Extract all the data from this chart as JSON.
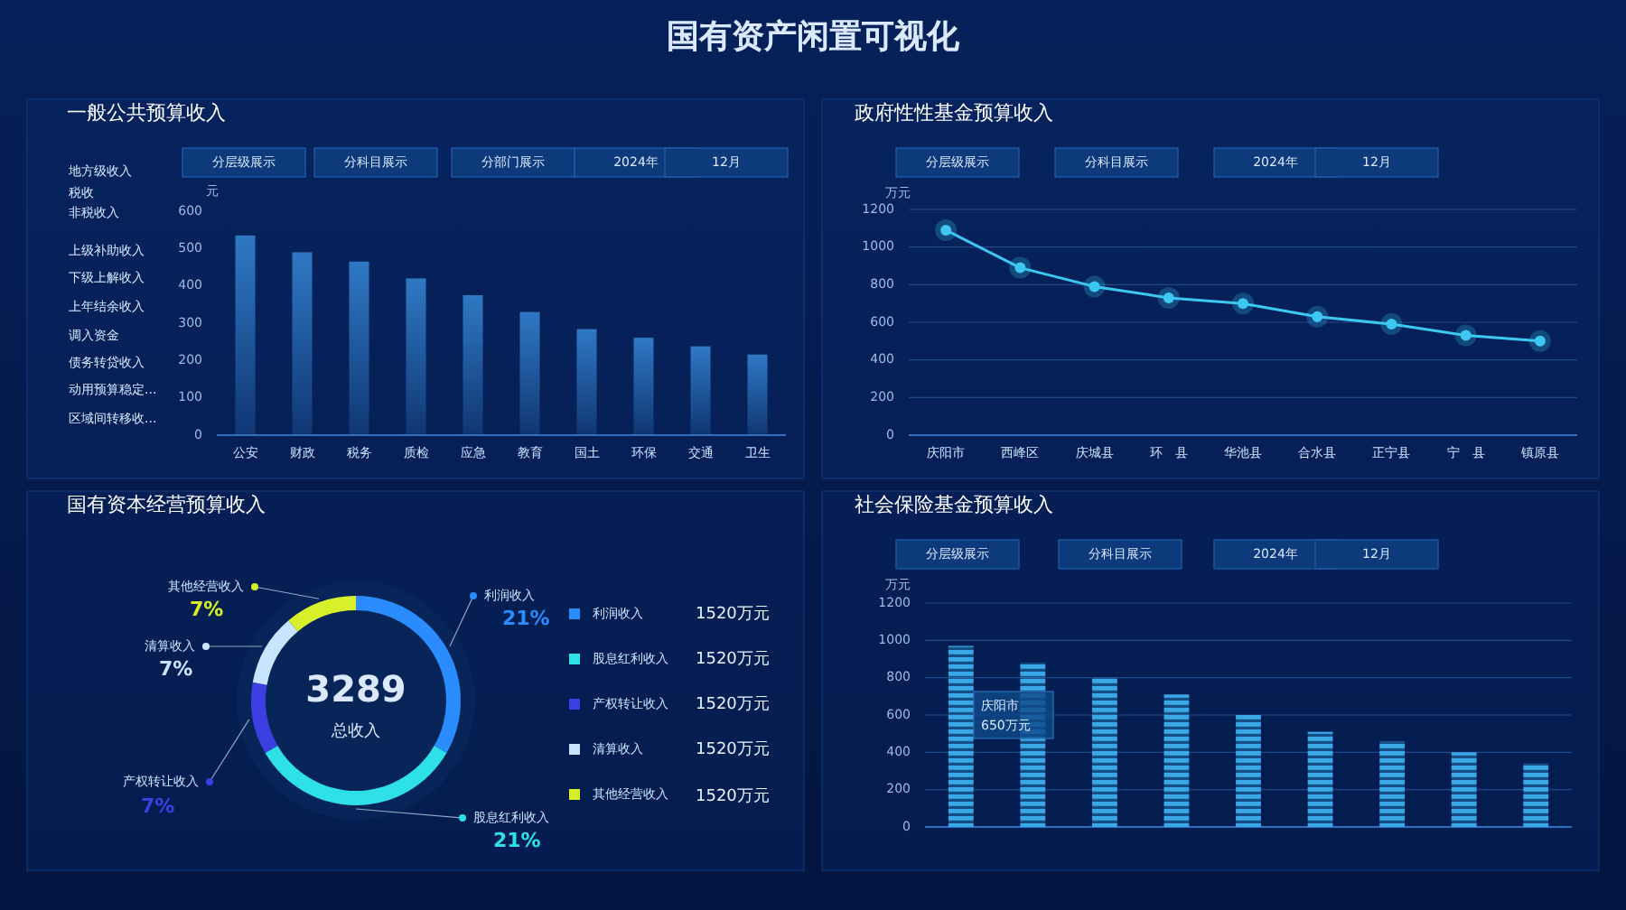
{
  "chart_data": [
    {
      "type": "bar",
      "title": "一般公共预算收入",
      "ylabel": "元",
      "categories": [
        "公安",
        "财政",
        "税务",
        "质检",
        "应急",
        "教育",
        "国土",
        "环保",
        "交通",
        "卫生"
      ],
      "series": [
        {
          "color": "#2f78c4",
          "values": [
            535,
            490,
            465,
            420,
            375,
            330,
            284,
            261,
            238,
            216
          ]
        }
      ],
      "ylim": [
        0,
        600
      ],
      "yticks": [
        0,
        100,
        200,
        300,
        400,
        500,
        600
      ],
      "annotations": [
        "国有资产闲置可视化",
        "分层级展示",
        "分科目展示",
        "分部门展示",
        "2024年",
        "12月",
        "地方级收入",
        "税收",
        "非税收入",
        "上级补助收入",
        "下级上解收入",
        "上年结余收入",
        "调入资金",
        "债务转贷收入",
        "动用预算稳定...",
        "区域间转移收..."
      ]
    },
    {
      "type": "line",
      "title": "政府性性基金预算收入",
      "ylabel": "万元",
      "categories": [
        "庆阳市",
        "西峰区",
        "庆城县",
        "环　县",
        "华池县",
        "合水县",
        "正宁县",
        "宁　县",
        "镇原县"
      ],
      "series": [
        {
          "color": "#3cc8f0",
          "values": [
            1090,
            890,
            790,
            730,
            700,
            630,
            590,
            530,
            500
          ]
        }
      ],
      "ylim": [
        0,
        1200
      ],
      "yticks": [
        0,
        200,
        400,
        600,
        800,
        1000,
        1200
      ],
      "grid": "y",
      "marker": "circle",
      "line_style": "solid",
      "annotations": [
        "分层级展示",
        "分科目展示",
        "2024年",
        "12月"
      ]
    },
    {
      "type": "donut",
      "title": "国有资本经营预算收入",
      "categories": [
        "利润收入",
        "股息红利收入",
        "产权转让收入",
        "清算收入",
        "其他经营收入"
      ],
      "values": [
        21,
        21,
        7,
        7,
        7
      ],
      "colors": [
        "#2a8cff",
        "#2ee0e8",
        "#3b3ee0",
        "#c8e4ff",
        "#d8f02a"
      ],
      "value_labels": [
        "21%",
        "21%",
        "7%",
        "7%",
        "7%"
      ],
      "legend": "right",
      "annotations": [
        "3289",
        "总收入",
        "1520万元",
        "1520万元",
        "1520万元",
        "1520万元",
        "1520万元"
      ]
    },
    {
      "type": "bar",
      "title": "社会保险基金预算收入",
      "ylabel": "万元",
      "categories": [
        null,
        null,
        null,
        null,
        null,
        null,
        null,
        null,
        null
      ],
      "series": [
        {
          "color": "#3aa8e8",
          "values": [
            970,
            880,
            800,
            710,
            600,
            510,
            460,
            400,
            340
          ]
        }
      ],
      "ylim": [
        0,
        1200
      ],
      "yticks": [
        0,
        200,
        400,
        600,
        800,
        1000,
        1200
      ],
      "grid": "y",
      "annotations": [
        "分层级展示",
        "分科目展示",
        "2024年",
        "12月",
        "庆阳市",
        "650万元"
      ]
    }
  ]
}
